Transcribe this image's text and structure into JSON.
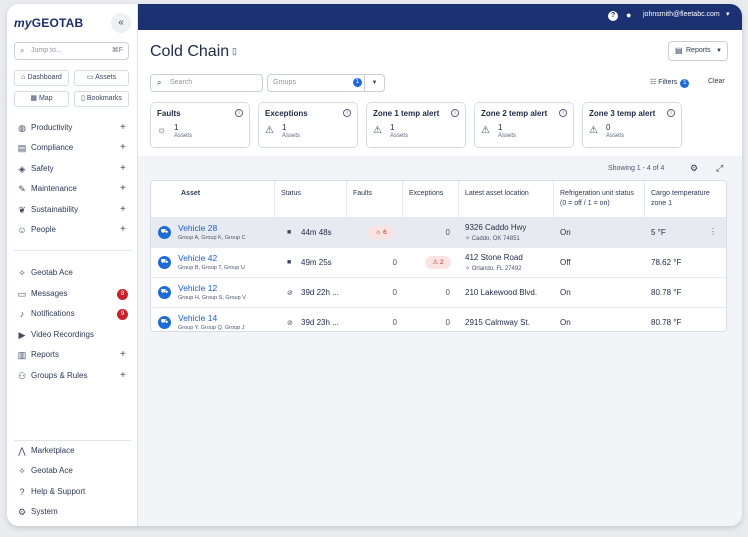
{
  "app": {
    "logo_my": "my",
    "logo_rest": "GEOTAB",
    "collapse_label": "«"
  },
  "sidebar": {
    "jump_placeholder": "Jump to...",
    "jump_shortcut": "⌘F",
    "quick": [
      {
        "label": "Dashboard",
        "icon": "dashboard-icon"
      },
      {
        "label": "Assets",
        "icon": "truck-icon"
      },
      {
        "label": "Map",
        "icon": "map-icon"
      },
      {
        "label": "Bookmarks",
        "icon": "bookmark-icon"
      }
    ],
    "items": [
      {
        "label": "Productivity",
        "icon": "globe-icon",
        "plus": true
      },
      {
        "label": "Compliance",
        "icon": "document-icon",
        "plus": true
      },
      {
        "label": "Safety",
        "icon": "shield-icon",
        "plus": true
      },
      {
        "label": "Maintenance",
        "icon": "wrench-icon",
        "plus": true
      },
      {
        "label": "Sustainability",
        "icon": "leaf-icon",
        "plus": true
      },
      {
        "label": "People",
        "icon": "people-icon",
        "plus": true
      },
      {
        "label": "Geotab Ace",
        "icon": "sparkle-icon"
      },
      {
        "label": "Messages",
        "icon": "message-icon",
        "badge": "8"
      },
      {
        "label": "Notifications",
        "icon": "bell-icon",
        "badge": "9"
      },
      {
        "label": "Video Recordings",
        "icon": "video-icon"
      },
      {
        "label": "Reports",
        "icon": "report-icon",
        "plus": true
      },
      {
        "label": "Groups & Rules",
        "icon": "groups-icon",
        "plus": true
      }
    ],
    "bottom": [
      {
        "label": "Marketplace",
        "icon": "marketplace-icon"
      },
      {
        "label": "Geotab Ace",
        "icon": "sparkle-icon"
      },
      {
        "label": "Help & Support",
        "icon": "help-icon"
      },
      {
        "label": "System",
        "icon": "gear-icon"
      }
    ]
  },
  "topbar": {
    "help": "?",
    "email": "johnsmith@fleetabc.com"
  },
  "page": {
    "title": "Cold Chain",
    "reports_label": "Reports",
    "search_placeholder": "Search",
    "groups_placeholder": "Groups",
    "groups_count": "1",
    "filters_label": "Filters",
    "filters_count": "1",
    "clear_label": "Clear",
    "showing": "Showing 1 - 4 of 4"
  },
  "tiles": [
    {
      "title": "Faults",
      "count": "1",
      "unit": "Assets",
      "icon": "fault-icon"
    },
    {
      "title": "Exceptions",
      "count": "1",
      "unit": "Assets",
      "icon": "warning-icon"
    },
    {
      "title": "Zone 1 temp alert",
      "count": "1",
      "unit": "Assets",
      "icon": "warning-icon"
    },
    {
      "title": "Zone 2 temp alert",
      "count": "1",
      "unit": "Assets",
      "icon": "warning-icon"
    },
    {
      "title": "Zone 3 temp alert",
      "count": "0",
      "unit": "Assets",
      "icon": "warning-icon"
    }
  ],
  "table": {
    "headers": [
      "Asset",
      "Status",
      "Faults",
      "Exceptions",
      "Latest asset location",
      "Refrigeration unit status (0 = off / 1 = on)",
      "Cargo temperature zone 1"
    ],
    "rows": [
      {
        "name": "Vehicle 28",
        "groups": "Group A, Group K, Group C",
        "status": "44m 48s",
        "faults": "6",
        "exceptions": "0",
        "loc1": "9326 Caddo Hwy",
        "loc2": "Caddo, OK 74851",
        "refr": "On",
        "temp": "5 °F"
      },
      {
        "name": "Vehicle 42",
        "groups": "Group B, Group T, Group U",
        "status": "49m 25s",
        "faults": "0",
        "exceptions": "2",
        "loc1": "412 Stone Road",
        "loc2": "Orlando, FL 27492",
        "refr": "Off",
        "temp": "78.62 °F"
      },
      {
        "name": "Vehicle 12",
        "groups": "Group H, Group S, Group V",
        "status": "39d 22h ...",
        "faults": "0",
        "exceptions": "0",
        "loc1": "210 Lakewood Blvd.",
        "loc2": "",
        "refr": "On",
        "temp": "80.78 °F"
      },
      {
        "name": "Vehicle 14",
        "groups": "Group Y, Group Q, Group J",
        "status": "39d 23h ...",
        "faults": "0",
        "exceptions": "0",
        "loc1": "2915 Calmway St.",
        "loc2": "",
        "refr": "On",
        "temp": "80.78 °F"
      }
    ]
  }
}
